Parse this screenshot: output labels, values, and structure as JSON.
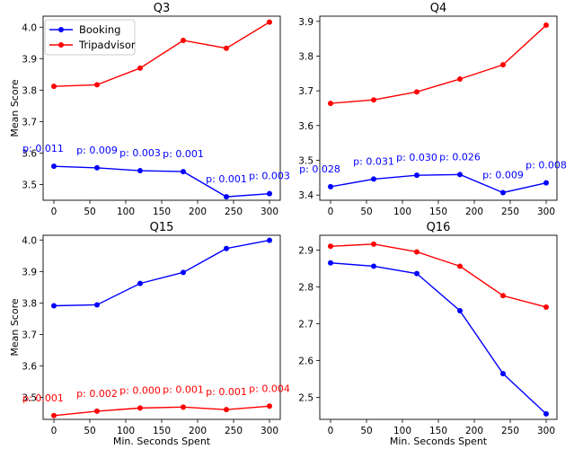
{
  "colors": {
    "Booking": "#0000ff",
    "Tripadvisor": "#ff0000"
  },
  "legend": {
    "location": "upper-left",
    "entries": [
      "Booking",
      "Tripadvisor"
    ]
  },
  "chart_data": [
    {
      "type": "line",
      "title": "Q3",
      "xlabel": "",
      "ylabel": "Mean Score",
      "x": [
        0,
        60,
        120,
        180,
        240,
        300
      ],
      "xticks": [
        0,
        50,
        100,
        150,
        200,
        250,
        300
      ],
      "xlim": [
        -15,
        315
      ],
      "yticks": [
        3.5,
        3.6,
        3.7,
        3.8,
        3.9,
        4.0
      ],
      "ytick_labels": [
        "3.5",
        "3.6",
        "3.7",
        "3.8",
        "3.9",
        "4.0"
      ],
      "ylim": [
        3.45,
        4.035
      ],
      "series": [
        {
          "name": "Booking",
          "values": [
            3.558,
            3.553,
            3.544,
            3.541,
            3.461,
            3.471
          ]
        },
        {
          "name": "Tripadvisor",
          "values": [
            3.812,
            3.817,
            3.87,
            3.958,
            3.933,
            4.016
          ]
        }
      ],
      "annotations": {
        "series": "Booking",
        "labels": [
          "p: 0.011",
          "p: 0.009",
          "p: 0.003",
          "p: 0.001",
          "p: 0.001",
          "p: 0.003"
        ]
      }
    },
    {
      "type": "line",
      "title": "Q4",
      "xlabel": "",
      "ylabel": "",
      "x": [
        0,
        60,
        120,
        180,
        240,
        300
      ],
      "xticks": [
        0,
        50,
        100,
        150,
        200,
        250,
        300
      ],
      "xlim": [
        -15,
        315
      ],
      "yticks": [
        3.4,
        3.5,
        3.6,
        3.7,
        3.8,
        3.9
      ],
      "ytick_labels": [
        "3.4",
        "3.5",
        "3.6",
        "3.7",
        "3.8",
        "3.9"
      ],
      "ylim": [
        3.385,
        3.915
      ],
      "series": [
        {
          "name": "Booking",
          "values": [
            3.424,
            3.446,
            3.457,
            3.459,
            3.407,
            3.435
          ]
        },
        {
          "name": "Tripadvisor",
          "values": [
            3.664,
            3.674,
            3.697,
            3.734,
            3.775,
            3.889
          ]
        }
      ],
      "annotations": {
        "series": "Booking",
        "labels": [
          "p: 0.028",
          "p: 0.031",
          "p: 0.030",
          "p: 0.026",
          "p: 0.009",
          "p: 0.008"
        ]
      }
    },
    {
      "type": "line",
      "title": "Q15",
      "xlabel": "Min. Seconds Spent",
      "ylabel": "Mean Score",
      "x": [
        0,
        60,
        120,
        180,
        240,
        300
      ],
      "xticks": [
        0,
        50,
        100,
        150,
        200,
        250,
        300
      ],
      "xlim": [
        -15,
        315
      ],
      "yticks": [
        3.5,
        3.6,
        3.7,
        3.8,
        3.9,
        4.0
      ],
      "ytick_labels": [
        "3.5",
        "3.6",
        "3.7",
        "3.8",
        "3.9",
        "4.0"
      ],
      "ylim": [
        3.43,
        4.015
      ],
      "series": [
        {
          "name": "Booking",
          "values": [
            3.791,
            3.794,
            3.862,
            3.897,
            3.973,
            3.999
          ]
        },
        {
          "name": "Tripadvisor",
          "values": [
            3.442,
            3.456,
            3.466,
            3.469,
            3.461,
            3.472
          ]
        }
      ],
      "annotations": {
        "series": "Tripadvisor",
        "labels": [
          "p: 0.001",
          "p: 0.002",
          "p: 0.000",
          "p: 0.001",
          "p: 0.001",
          "p: 0.004"
        ]
      }
    },
    {
      "type": "line",
      "title": "Q16",
      "xlabel": "Min. Seconds Spent",
      "ylabel": "",
      "x": [
        0,
        60,
        120,
        180,
        240,
        300
      ],
      "xticks": [
        0,
        50,
        100,
        150,
        200,
        250,
        300
      ],
      "xlim": [
        -15,
        315
      ],
      "yticks": [
        2.5,
        2.6,
        2.7,
        2.8,
        2.9
      ],
      "ytick_labels": [
        "2.5",
        "2.6",
        "2.7",
        "2.8",
        "2.9"
      ],
      "ylim": [
        2.44,
        2.94
      ],
      "series": [
        {
          "name": "Booking",
          "values": [
            2.865,
            2.856,
            2.836,
            2.735,
            2.564,
            2.455
          ]
        },
        {
          "name": "Tripadvisor",
          "values": [
            2.91,
            2.916,
            2.895,
            2.856,
            2.776,
            2.745
          ]
        }
      ],
      "annotations": null
    }
  ]
}
